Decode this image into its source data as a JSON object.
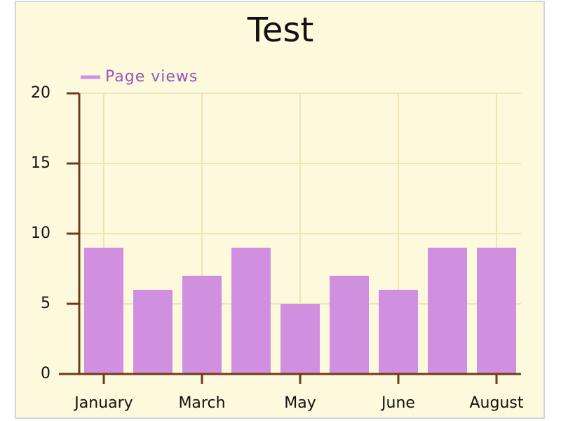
{
  "chart_data": {
    "type": "bar",
    "title": "Test",
    "categories": [
      "January",
      null,
      "March",
      null,
      "May",
      null,
      "June",
      null,
      "August"
    ],
    "series": [
      {
        "name": "Page views",
        "color": "#d190df",
        "values": [
          9,
          6,
          7,
          9,
          5,
          7,
          6,
          9,
          9
        ]
      }
    ],
    "ylim": [
      0,
      20
    ],
    "yticks": [
      0,
      5,
      10,
      15,
      20
    ],
    "grid": true,
    "legend": "top-left"
  }
}
